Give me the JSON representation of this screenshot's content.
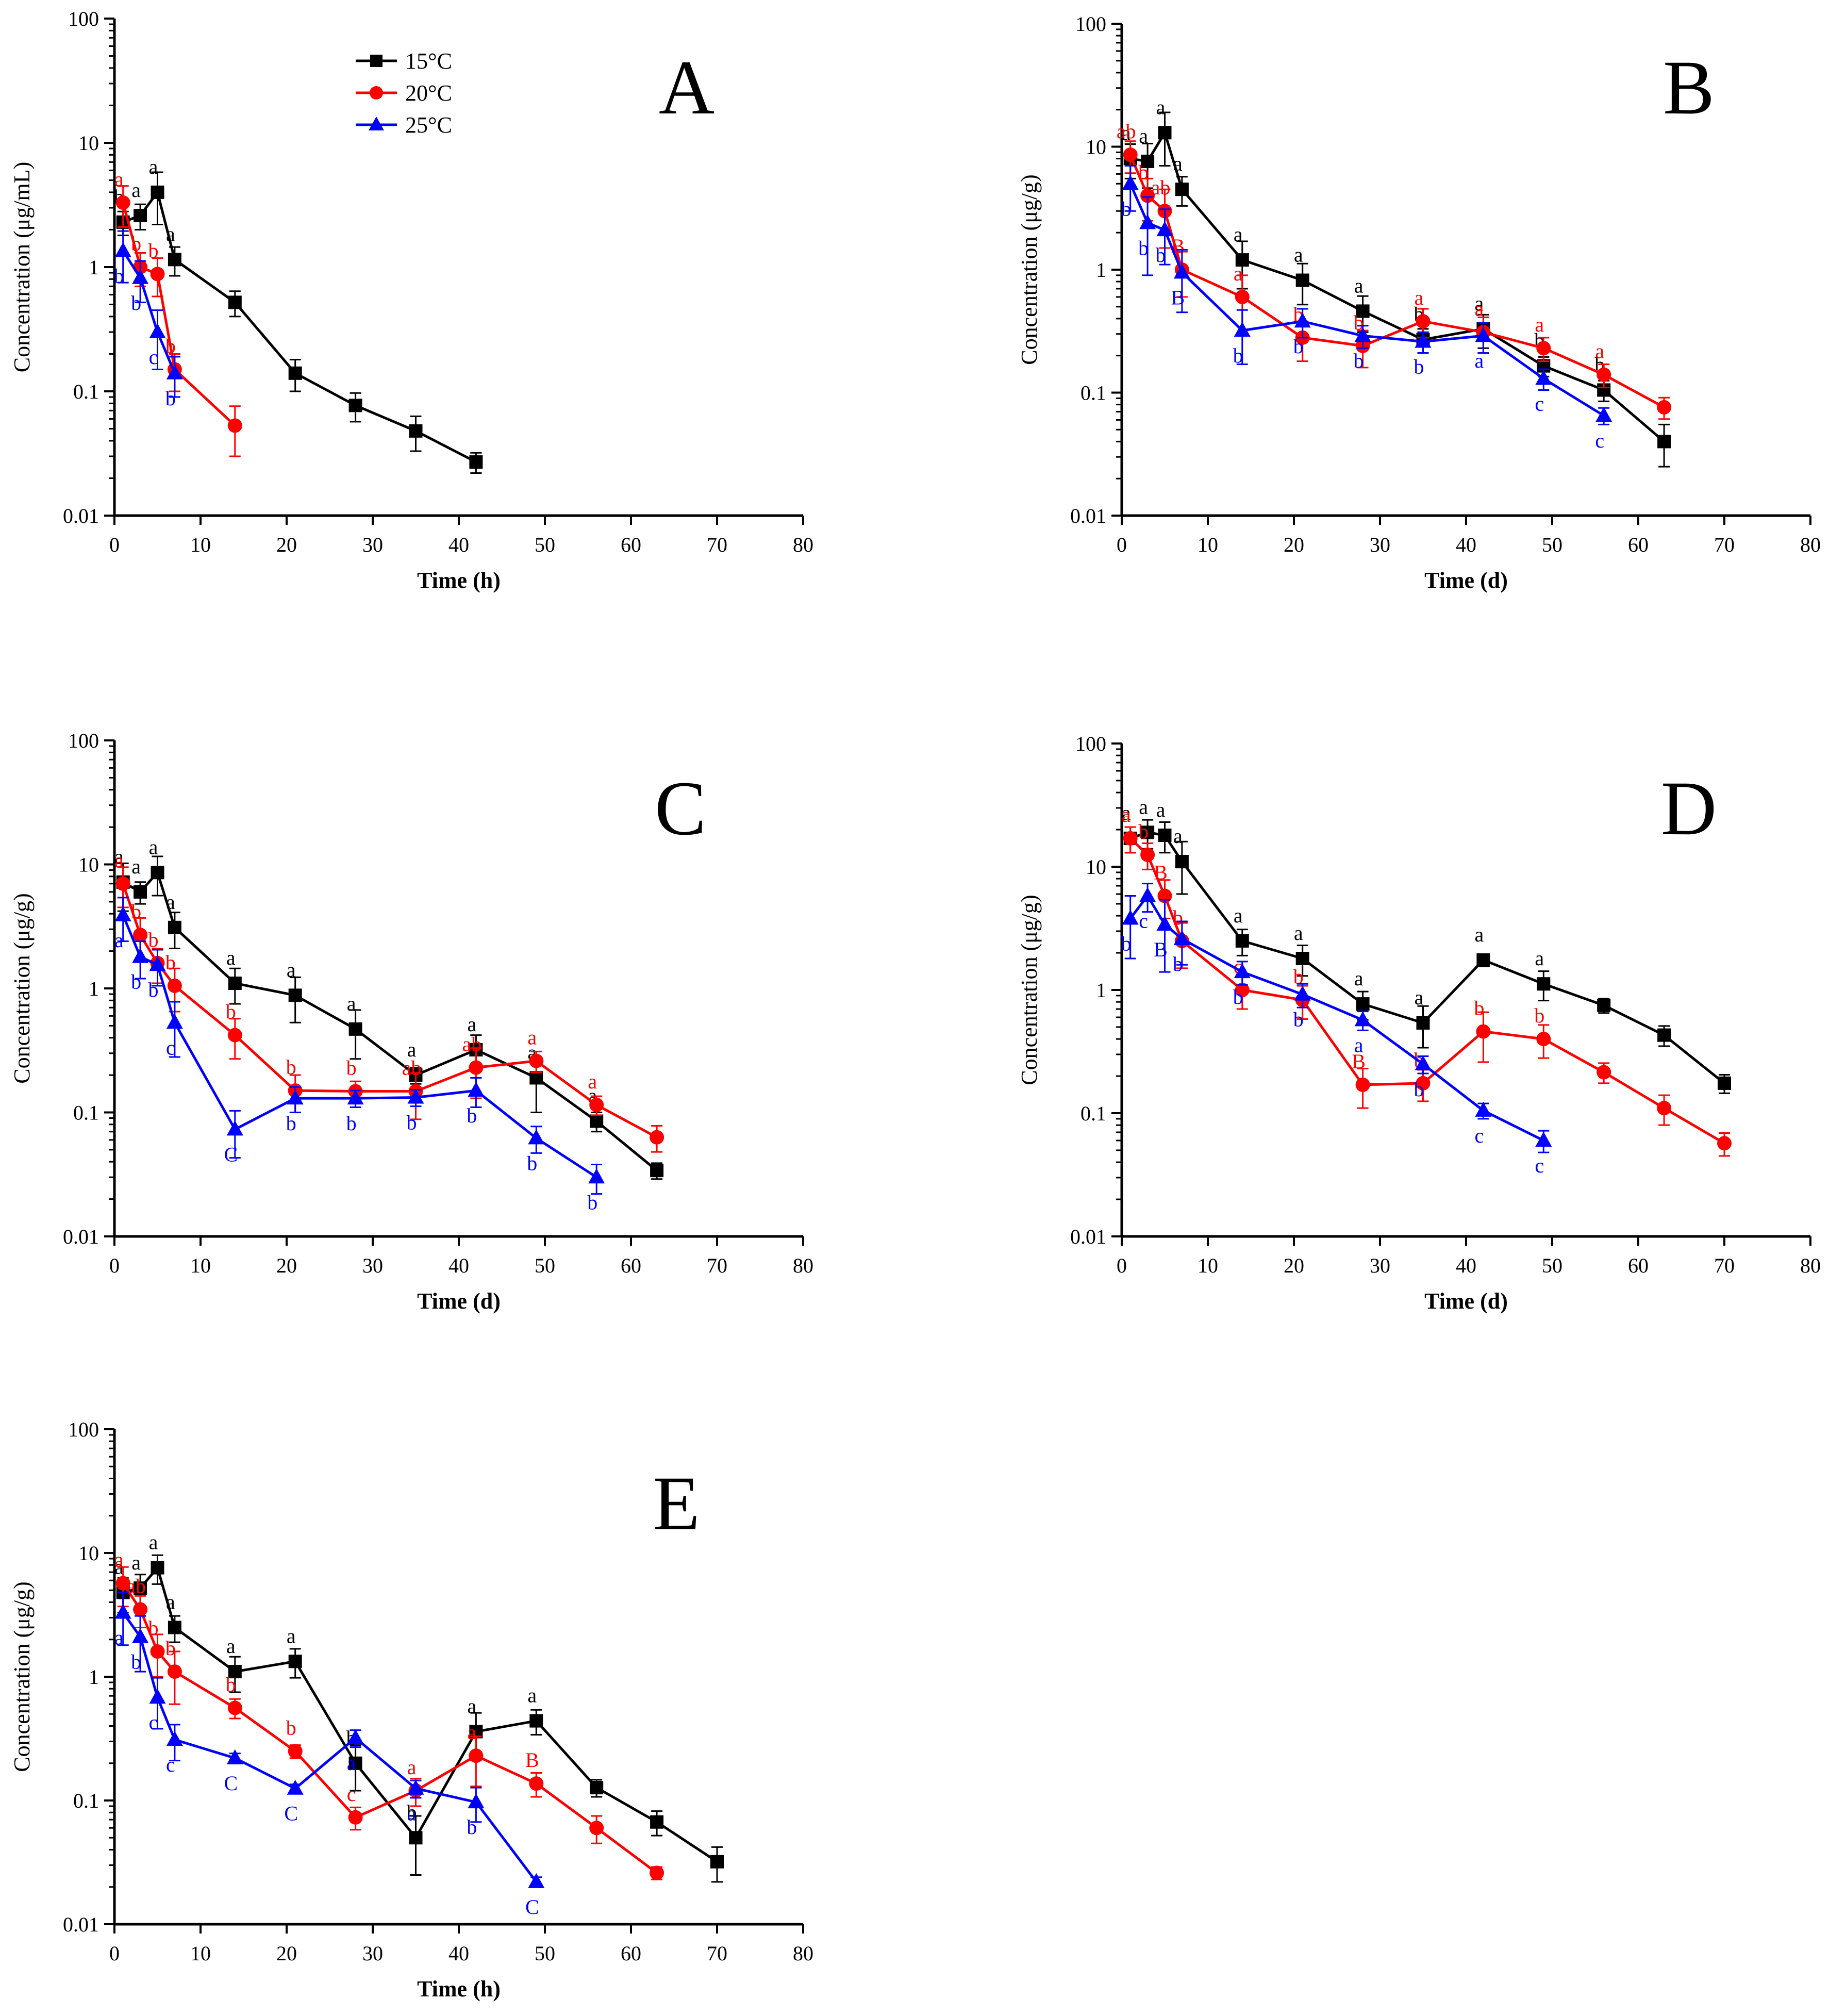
{
  "figure": {
    "legend_entries": [
      {
        "name": "15°C",
        "color": "#000000",
        "marker": "square"
      },
      {
        "name": "20°C",
        "color": "#ff0000",
        "marker": "circle"
      },
      {
        "name": "25°C",
        "color": "#0000ff",
        "marker": "triangle"
      }
    ]
  },
  "chart_data": [
    {
      "id": "A",
      "type": "line",
      "panel_letter": "A",
      "title": "A",
      "xlabel": "Time (h)",
      "ylabel": "Concentration (μg/mL)",
      "xlim": [
        0,
        80
      ],
      "ylim": [
        0.01,
        100
      ],
      "yscale": "log",
      "xticks": [
        "0",
        "10",
        "20",
        "30",
        "40",
        "50",
        "60",
        "70",
        "80"
      ],
      "yticks": [
        "0.01",
        "0.1",
        "1",
        "10",
        "100"
      ],
      "show_legend": true,
      "series": [
        {
          "name": "15°C",
          "color": "#000000",
          "marker": "square",
          "x": [
            1,
            3,
            5,
            7,
            14,
            21,
            28,
            35,
            42
          ],
          "y": [
            2.3,
            2.6,
            4.0,
            1.15,
            0.52,
            0.14,
            0.077,
            0.048,
            0.027
          ],
          "err": [
            0.5,
            0.6,
            1.8,
            0.3,
            0.12,
            0.04,
            0.02,
            0.015,
            0.005
          ],
          "labels": [
            "b",
            "a",
            "a",
            "a",
            "",
            "",
            "",
            "",
            ""
          ]
        },
        {
          "name": "20°C",
          "color": "#ff0000",
          "marker": "circle",
          "x": [
            1,
            3,
            5,
            7,
            14
          ],
          "y": [
            3.3,
            1.0,
            0.88,
            0.15,
            0.053
          ],
          "err": [
            1.2,
            0.3,
            0.3,
            0.05,
            0.023
          ],
          "labels": [
            "a",
            "b",
            "b",
            "b",
            ""
          ]
        },
        {
          "name": "25°C",
          "color": "#0000ff",
          "marker": "triangle",
          "x": [
            1,
            3,
            5,
            7
          ],
          "y": [
            1.35,
            0.82,
            0.3,
            0.14
          ],
          "err": [
            0.6,
            0.3,
            0.15,
            0.05
          ],
          "labels": [
            "b",
            "b",
            "c",
            "b"
          ]
        }
      ]
    },
    {
      "id": "B",
      "type": "line",
      "panel_letter": "B",
      "title": "B",
      "xlabel": "Time (d)",
      "ylabel": "Concentration (μg/g)",
      "xlim": [
        0,
        80
      ],
      "ylim": [
        0.01,
        100
      ],
      "yscale": "log",
      "xticks": [
        "0",
        "10",
        "20",
        "30",
        "40",
        "50",
        "60",
        "70",
        "80"
      ],
      "yticks": [
        "0.01",
        "0.1",
        "1",
        "10",
        "100"
      ],
      "show_legend": false,
      "series": [
        {
          "name": "15°C",
          "color": "#000000",
          "marker": "square",
          "x": [
            1,
            3,
            5,
            7,
            14,
            21,
            28,
            35,
            42,
            49,
            56,
            63
          ],
          "y": [
            8.0,
            7.6,
            13.0,
            4.5,
            1.2,
            0.82,
            0.46,
            0.27,
            0.33,
            0.165,
            0.105,
            0.04
          ],
          "err": [
            2.5,
            3.0,
            6.0,
            1.2,
            0.5,
            0.3,
            0.15,
            0.06,
            0.1,
            0.03,
            0.02,
            0.015
          ],
          "labels": [
            "a",
            "a",
            "a",
            "a",
            "a",
            "a",
            "a",
            "b",
            "a",
            "b",
            "b",
            ""
          ]
        },
        {
          "name": "20°C",
          "color": "#ff0000",
          "marker": "circle",
          "x": [
            1,
            3,
            5,
            7,
            14,
            21,
            28,
            35,
            42,
            49,
            56,
            63
          ],
          "y": [
            8.6,
            4.0,
            3.0,
            1.0,
            0.6,
            0.28,
            0.24,
            0.38,
            0.31,
            0.23,
            0.14,
            0.076
          ],
          "err": [
            2.5,
            1.5,
            1.5,
            0.4,
            0.3,
            0.1,
            0.08,
            0.1,
            0.1,
            0.05,
            0.03,
            0.015
          ],
          "labels": [
            "ab",
            "b",
            "ab",
            "B",
            "a",
            "b",
            "b",
            "a",
            "a",
            "a",
            "a",
            ""
          ]
        },
        {
          "name": "25°C",
          "color": "#0000ff",
          "marker": "triangle",
          "x": [
            1,
            3,
            5,
            7,
            14,
            21,
            28,
            35,
            42,
            49,
            56
          ],
          "y": [
            5.0,
            2.4,
            2.1,
            0.95,
            0.32,
            0.38,
            0.29,
            0.26,
            0.29,
            0.13,
            0.065
          ],
          "err": [
            2.0,
            1.5,
            1.0,
            0.5,
            0.15,
            0.1,
            0.06,
            0.05,
            0.08,
            0.025,
            0.01
          ],
          "labels": [
            "b",
            "b",
            "b",
            "B",
            "b",
            "b",
            "b",
            "b",
            "a",
            "c",
            "c"
          ]
        }
      ]
    },
    {
      "id": "C",
      "type": "line",
      "panel_letter": "C",
      "title": "C",
      "xlabel": "Time (d)",
      "ylabel": "Concentration (μg/g)",
      "xlim": [
        0,
        80
      ],
      "ylim": [
        0.01,
        100
      ],
      "yscale": "log",
      "xticks": [
        "0",
        "10",
        "20",
        "30",
        "40",
        "50",
        "60",
        "70",
        "80"
      ],
      "yticks": [
        "0.01",
        "0.1",
        "1",
        "10",
        "100"
      ],
      "show_legend": false,
      "series": [
        {
          "name": "15°C",
          "color": "#000000",
          "marker": "square",
          "x": [
            1,
            3,
            5,
            7,
            14,
            21,
            28,
            35,
            42,
            49,
            56,
            63
          ],
          "y": [
            7.2,
            6.0,
            8.6,
            3.1,
            1.1,
            0.88,
            0.47,
            0.2,
            0.32,
            0.19,
            0.085,
            0.034
          ],
          "err": [
            3.0,
            1.2,
            3.0,
            1.0,
            0.35,
            0.35,
            0.2,
            0.03,
            0.1,
            0.09,
            0.015,
            0.005
          ],
          "labels": [
            "a",
            "a",
            "a",
            "a",
            "a",
            "a",
            "a",
            "a",
            "a",
            "a",
            "a",
            ""
          ]
        },
        {
          "name": "20°C",
          "color": "#ff0000",
          "marker": "circle",
          "x": [
            1,
            3,
            5,
            7,
            14,
            21,
            28,
            35,
            42,
            49,
            56,
            63
          ],
          "y": [
            7.0,
            2.7,
            1.6,
            1.05,
            0.42,
            0.15,
            0.148,
            0.148,
            0.23,
            0.26,
            0.115,
            0.063
          ],
          "err": [
            2.5,
            1.0,
            0.5,
            0.4,
            0.15,
            0.05,
            0.03,
            0.06,
            0.1,
            0.05,
            0.02,
            0.015
          ],
          "labels": [
            "a",
            "b",
            "b",
            "b",
            "b",
            "b",
            "b",
            "ab",
            "ab",
            "a",
            "a",
            ""
          ]
        },
        {
          "name": "25°C",
          "color": "#0000ff",
          "marker": "triangle",
          "x": [
            1,
            3,
            5,
            7,
            14,
            21,
            28,
            35,
            42,
            49,
            56
          ],
          "y": [
            3.9,
            1.8,
            1.55,
            0.53,
            0.073,
            0.13,
            0.13,
            0.132,
            0.15,
            0.062,
            0.03
          ],
          "err": [
            1.5,
            0.6,
            0.5,
            0.25,
            0.03,
            0.03,
            0.02,
            0.02,
            0.04,
            0.015,
            0.008
          ],
          "labels": [
            "a",
            "b",
            "b",
            "c",
            "C",
            "b",
            "b",
            "b",
            "b",
            "b",
            "b"
          ]
        }
      ]
    },
    {
      "id": "D",
      "type": "line",
      "panel_letter": "D",
      "title": "D",
      "xlabel": "Time (d)",
      "ylabel": "Concentration (μg/g)",
      "xlim": [
        0,
        80
      ],
      "ylim": [
        0.01,
        100
      ],
      "yscale": "log",
      "xticks": [
        "0",
        "10",
        "20",
        "30",
        "40",
        "50",
        "60",
        "70",
        "80"
      ],
      "yticks": [
        "0.01",
        "0.1",
        "1",
        "10",
        "100"
      ],
      "show_legend": false,
      "series": [
        {
          "name": "15°C",
          "color": "#000000",
          "marker": "square",
          "x": [
            1,
            3,
            5,
            7,
            14,
            21,
            28,
            35,
            42,
            49,
            56,
            63,
            70
          ],
          "y": [
            17.0,
            19.0,
            18.0,
            11.0,
            2.5,
            1.8,
            0.77,
            0.54,
            1.75,
            1.12,
            0.75,
            0.43,
            0.175
          ],
          "err": [
            4.0,
            5.0,
            5.0,
            5.0,
            0.6,
            0.5,
            0.2,
            0.2,
            0.2,
            0.3,
            0.1,
            0.08,
            0.03
          ],
          "labels": [
            "a",
            "a",
            "a",
            "a",
            "a",
            "a",
            "a",
            "a",
            "a",
            "a",
            "",
            "",
            ""
          ]
        },
        {
          "name": "20°C",
          "color": "#ff0000",
          "marker": "circle",
          "x": [
            1,
            3,
            5,
            7,
            14,
            21,
            28,
            35,
            42,
            49,
            56,
            63,
            70
          ],
          "y": [
            17.0,
            12.5,
            5.8,
            2.5,
            1.0,
            0.83,
            0.17,
            0.175,
            0.46,
            0.4,
            0.215,
            0.11,
            0.057
          ],
          "err": [
            4.0,
            3.0,
            2.0,
            1.0,
            0.3,
            0.25,
            0.06,
            0.05,
            0.2,
            0.12,
            0.04,
            0.03,
            0.012
          ],
          "labels": [
            "a",
            "b",
            "B",
            "b",
            "c",
            "b",
            "B",
            "b",
            "b",
            "b",
            "",
            "",
            ""
          ]
        },
        {
          "name": "25°C",
          "color": "#0000ff",
          "marker": "triangle",
          "x": [
            1,
            3,
            5,
            7,
            14,
            21,
            28,
            35,
            42,
            49
          ],
          "y": [
            3.8,
            5.8,
            3.4,
            2.6,
            1.4,
            0.92,
            0.57,
            0.25,
            0.105,
            0.06
          ],
          "err": [
            2.0,
            1.5,
            2.0,
            1.0,
            0.3,
            0.2,
            0.1,
            0.04,
            0.015,
            0.012
          ],
          "labels": [
            "b",
            "c",
            "B",
            "b",
            "b",
            "b",
            "a",
            "b",
            "c",
            "c"
          ]
        }
      ]
    },
    {
      "id": "E",
      "type": "line",
      "panel_letter": "E",
      "title": "E",
      "xlabel": "Time (h)",
      "ylabel": "Concentration (μg/g)",
      "xlim": [
        0,
        80
      ],
      "ylim": [
        0.01,
        100
      ],
      "yscale": "log",
      "xticks": [
        "0",
        "10",
        "20",
        "30",
        "40",
        "50",
        "60",
        "70",
        "80"
      ],
      "yticks": [
        "0.01",
        "0.1",
        "1",
        "10",
        "100"
      ],
      "show_legend": false,
      "series": [
        {
          "name": "15°C",
          "color": "#000000",
          "marker": "square",
          "x": [
            1,
            3,
            5,
            7,
            14,
            21,
            28,
            35,
            42,
            49,
            56,
            63,
            70
          ],
          "y": [
            4.8,
            5.2,
            7.6,
            2.5,
            1.1,
            1.33,
            0.2,
            0.05,
            0.36,
            0.44,
            0.127,
            0.067,
            0.032
          ],
          "err": [
            1.5,
            1.5,
            2.0,
            0.6,
            0.35,
            0.35,
            0.08,
            0.025,
            0.15,
            0.1,
            0.02,
            0.015,
            0.01
          ],
          "labels": [
            "a",
            "a",
            "a",
            "a",
            "a",
            "a",
            "b",
            "b",
            "a",
            "a",
            "",
            "",
            ""
          ]
        },
        {
          "name": "20°C",
          "color": "#ff0000",
          "marker": "circle",
          "x": [
            1,
            3,
            5,
            7,
            14,
            21,
            28,
            35,
            42,
            49,
            56,
            63
          ],
          "y": [
            5.7,
            3.5,
            1.6,
            1.1,
            0.56,
            0.25,
            0.073,
            0.12,
            0.23,
            0.137,
            0.06,
            0.026
          ],
          "err": [
            2.0,
            1.0,
            0.6,
            0.5,
            0.1,
            0.03,
            0.015,
            0.03,
            0.1,
            0.03,
            0.015,
            0.003
          ],
          "labels": [
            "a",
            "ab",
            "b",
            "b",
            "b",
            "b",
            "c",
            "a",
            "a",
            "B",
            "",
            ""
          ]
        },
        {
          "name": "25°C",
          "color": "#0000ff",
          "marker": "triangle",
          "x": [
            1,
            3,
            5,
            7,
            14,
            21,
            28,
            35,
            42,
            49
          ],
          "y": [
            3.3,
            2.1,
            0.68,
            0.31,
            0.22,
            0.125,
            0.32,
            0.125,
            0.097,
            0.022
          ],
          "err": [
            1.5,
            1.0,
            0.3,
            0.1,
            0.02,
            0.01,
            0.05,
            0.02,
            0.03,
            0.002
          ],
          "labels": [
            "a",
            "b",
            "c",
            "c",
            "C",
            "C",
            "a",
            "a",
            "b",
            "C"
          ]
        }
      ]
    }
  ]
}
